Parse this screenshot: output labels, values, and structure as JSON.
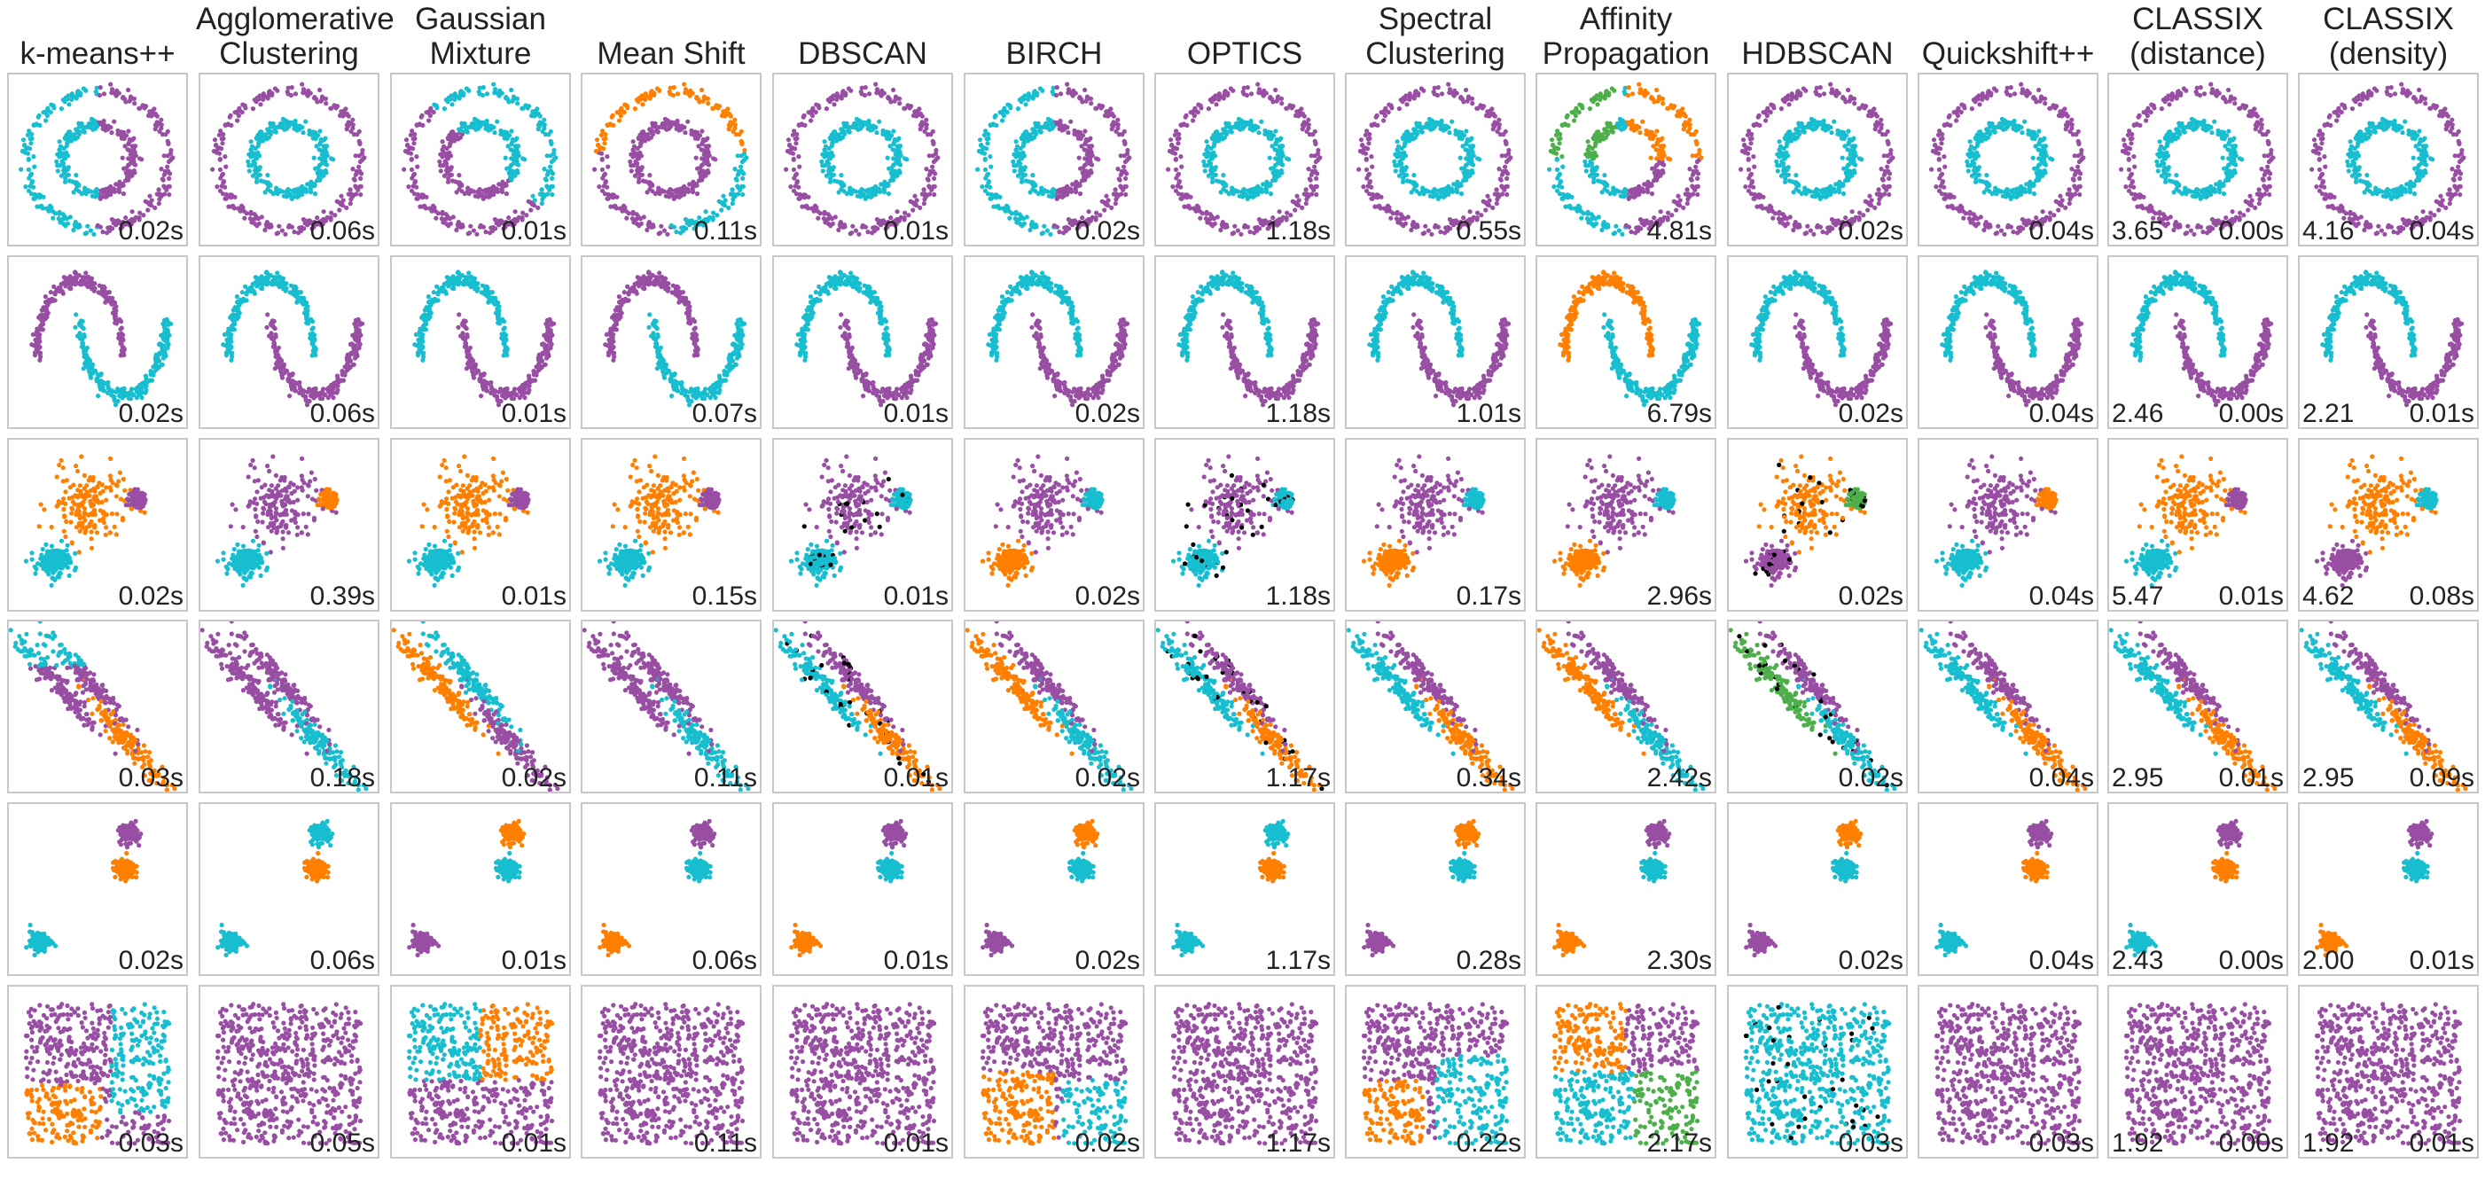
{
  "figure": {
    "methods": [
      "k-means++",
      "Agglomerative Clustering",
      "Gaussian Mixture",
      "Mean Shift",
      "DBSCAN",
      "BIRCH",
      "OPTICS",
      "Spectral Clustering",
      "Affinity Propagation",
      "HDBSCAN",
      "Quickshift++",
      "CLASSIX (distance)",
      "CLASSIX (density)"
    ],
    "colors": {
      "purple": "#984ea3",
      "cyan": "#17becf",
      "orange": "#ff7f00",
      "green": "#4daf4a",
      "noise": "#000000"
    }
  },
  "chart_data": {
    "type": "scatter",
    "datasets": [
      "noisy_circles",
      "noisy_moons",
      "varied",
      "aniso",
      "blobs",
      "no_structure"
    ],
    "times": [
      [
        "0.02s",
        "0.06s",
        "0.01s",
        "0.11s",
        "0.01s",
        "0.02s",
        "1.18s",
        "0.55s",
        "4.81s",
        "0.02s",
        "0.04s",
        "0.00s",
        "0.04s"
      ],
      [
        "0.02s",
        "0.06s",
        "0.01s",
        "0.07s",
        "0.01s",
        "0.02s",
        "1.18s",
        "1.01s",
        "6.79s",
        "0.02s",
        "0.04s",
        "0.00s",
        "0.01s"
      ],
      [
        "0.02s",
        "0.39s",
        "0.01s",
        "0.15s",
        "0.01s",
        "0.02s",
        "1.18s",
        "0.17s",
        "2.96s",
        "0.02s",
        "0.04s",
        "0.01s",
        "0.08s"
      ],
      [
        "0.03s",
        "0.18s",
        "0.02s",
        "0.11s",
        "0.01s",
        "0.02s",
        "1.17s",
        "0.34s",
        "2.42s",
        "0.02s",
        "0.04s",
        "0.01s",
        "0.09s"
      ],
      [
        "0.02s",
        "0.06s",
        "0.01s",
        "0.06s",
        "0.01s",
        "0.02s",
        "1.17s",
        "0.28s",
        "2.30s",
        "0.02s",
        "0.04s",
        "0.00s",
        "0.01s"
      ],
      [
        "0.03s",
        "0.05s",
        "0.01s",
        "0.11s",
        "0.01s",
        "0.02s",
        "1.17s",
        "0.22s",
        "2.17s",
        "0.03s",
        "0.03s",
        "0.00s",
        "0.01s"
      ]
    ],
    "classix_params": [
      [
        "3.65",
        "4.16"
      ],
      [
        "2.46",
        "2.21"
      ],
      [
        "5.47",
        "4.62"
      ],
      [
        "2.95",
        "2.95"
      ],
      [
        "2.43",
        "2.00"
      ],
      [
        "1.92",
        "1.92"
      ]
    ]
  }
}
